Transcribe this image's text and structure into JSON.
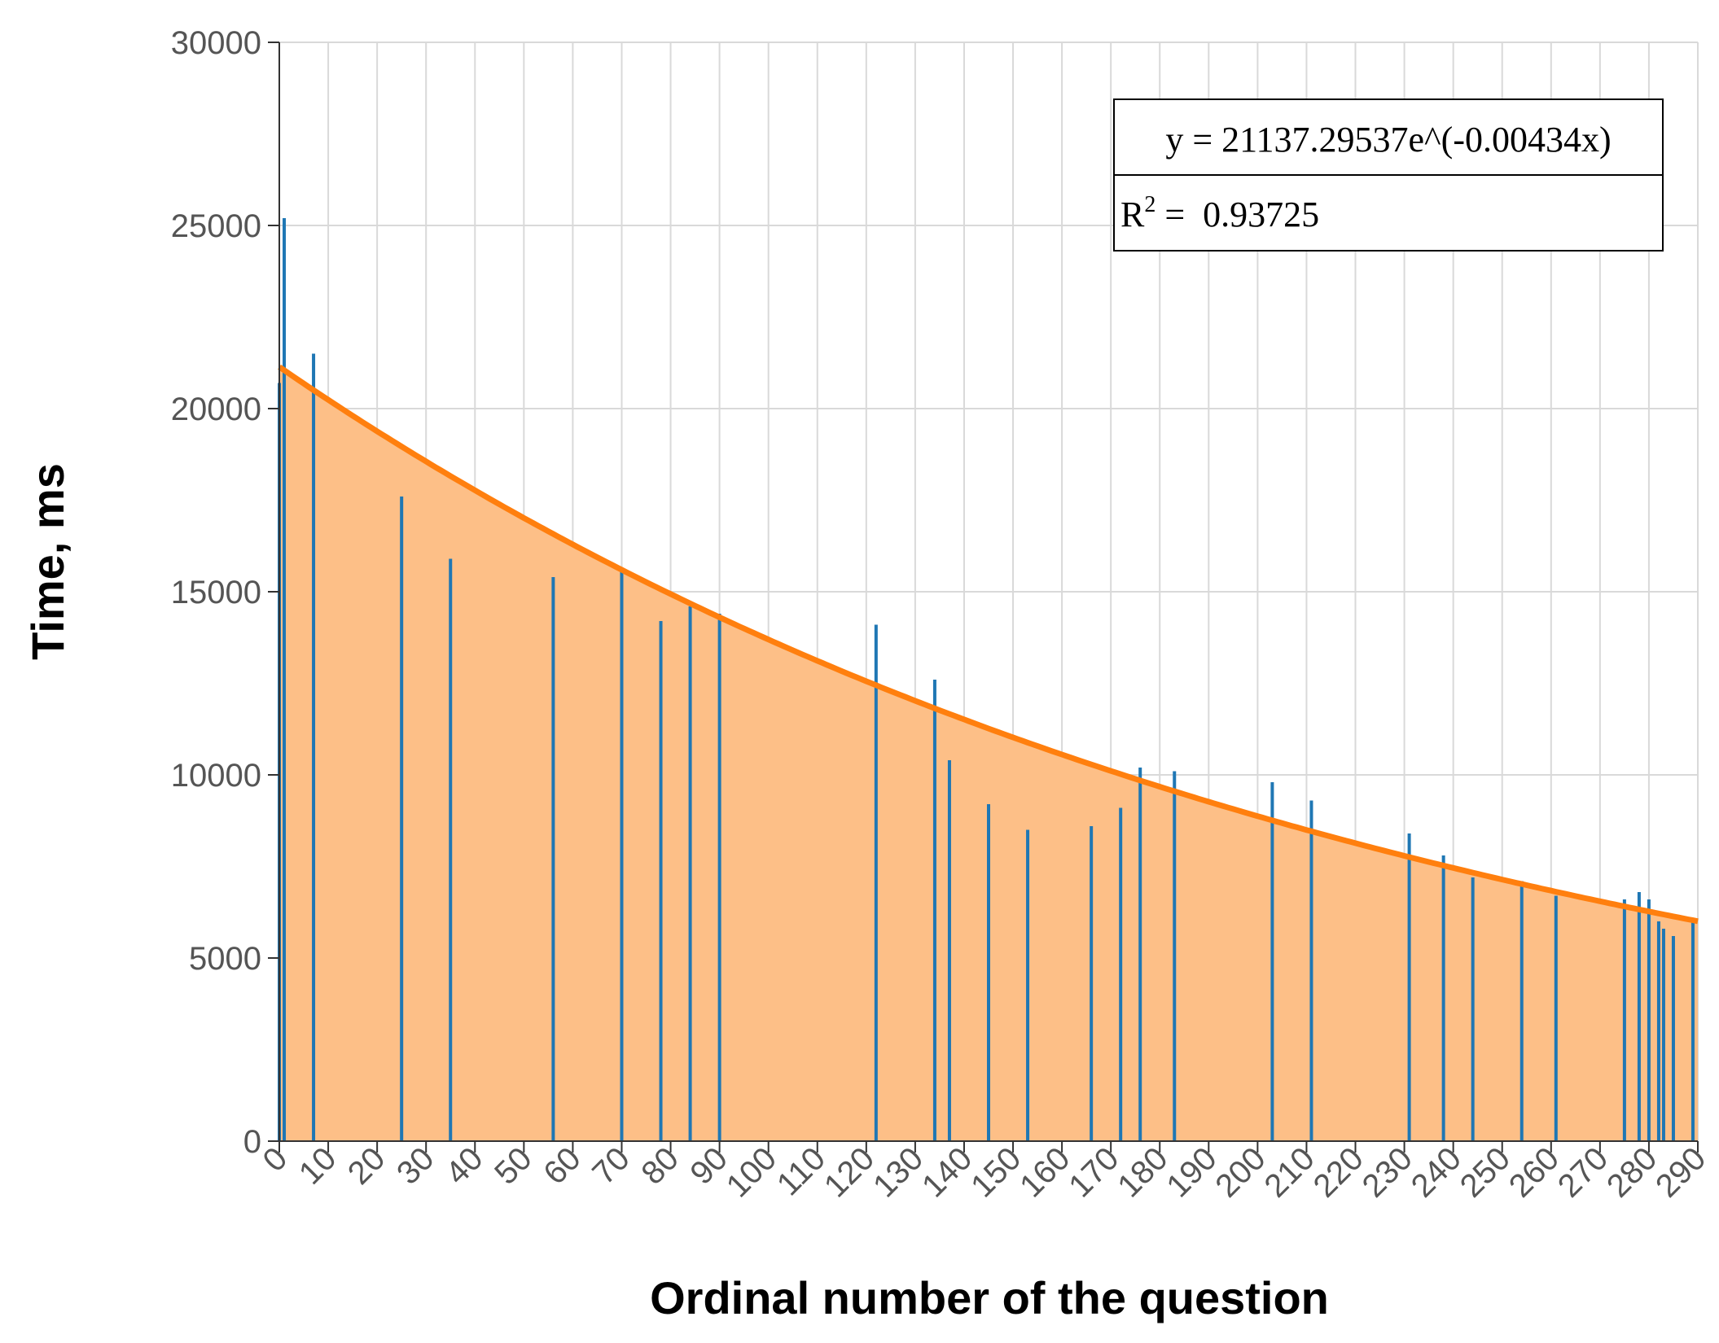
{
  "chart_data": {
    "type": "bar",
    "xlabel": "Ordinal number of the question",
    "ylabel": "Time, ms",
    "xlim": [
      0,
      290
    ],
    "ylim": [
      0,
      30000
    ],
    "xticks": [
      0,
      10,
      20,
      30,
      40,
      50,
      60,
      70,
      80,
      90,
      100,
      110,
      120,
      130,
      140,
      150,
      160,
      170,
      180,
      190,
      200,
      210,
      220,
      230,
      240,
      250,
      260,
      270,
      280,
      290
    ],
    "yticks": [
      0,
      5000,
      10000,
      15000,
      20000,
      25000,
      30000
    ],
    "grid": true,
    "series": [
      {
        "type": "bar",
        "color": "#1f77b4",
        "x": [
          0,
          1,
          7,
          25,
          35,
          56,
          70,
          78,
          84,
          90,
          122,
          134,
          137,
          145,
          153,
          166,
          172,
          176,
          183,
          203,
          211,
          231,
          238,
          244,
          254,
          261,
          275,
          278,
          280,
          282,
          283,
          285,
          289
        ],
        "y": [
          20700,
          25200,
          21500,
          17600,
          15900,
          15400,
          15600,
          14200,
          14600,
          14400,
          14100,
          12600,
          10400,
          9200,
          8500,
          8600,
          9100,
          10200,
          10100,
          9800,
          9300,
          8400,
          7800,
          7200,
          7100,
          6700,
          6600,
          6800,
          6600,
          6000,
          5800,
          5600,
          6000
        ]
      },
      {
        "type": "area",
        "color": "#ff7f0e",
        "fill": "#fdbf87",
        "fit": {
          "a": 21137.29537,
          "b": -0.00434
        }
      }
    ],
    "annotation": {
      "equation": "y = 21137.29537e^(-0.00434x)",
      "r2_label": "R",
      "r2_sup": "2",
      "r2_rest": " =  0.93725"
    }
  }
}
